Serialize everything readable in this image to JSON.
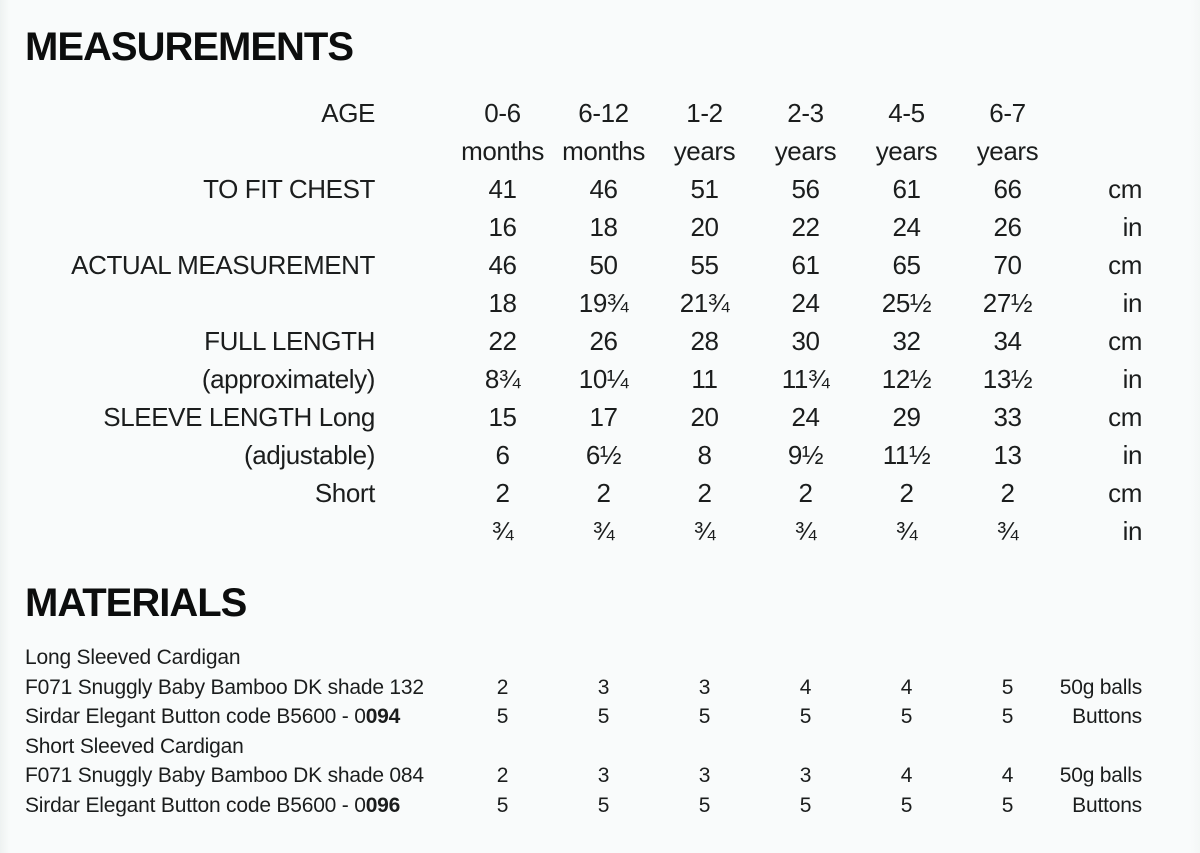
{
  "page": {
    "background": "#f9fbfb",
    "text_color": "#1b1d1d"
  },
  "measurements": {
    "title": "MEASUREMENTS",
    "age_label": "AGE",
    "columns": [
      {
        "range": "0-6",
        "period": "months"
      },
      {
        "range": "6-12",
        "period": "months"
      },
      {
        "range": "1-2",
        "period": "years"
      },
      {
        "range": "2-3",
        "period": "years"
      },
      {
        "range": "4-5",
        "period": "years"
      },
      {
        "range": "6-7",
        "period": "years"
      }
    ],
    "rows": [
      {
        "label": "TO FIT CHEST",
        "values": [
          "41",
          "46",
          "51",
          "56",
          "61",
          "66"
        ],
        "unit": "cm"
      },
      {
        "label": "",
        "values": [
          "16",
          "18",
          "20",
          "22",
          "24",
          "26"
        ],
        "unit": "in"
      },
      {
        "label": "ACTUAL MEASUREMENT",
        "values": [
          "46",
          "50",
          "55",
          "61",
          "65",
          "70"
        ],
        "unit": "cm"
      },
      {
        "label": "",
        "values": [
          "18",
          "19¾",
          "21¾",
          "24",
          "25½",
          "27½"
        ],
        "unit": "in"
      },
      {
        "label": "FULL LENGTH",
        "values": [
          "22",
          "26",
          "28",
          "30",
          "32",
          "34"
        ],
        "unit": "cm"
      },
      {
        "label": "(approximately)",
        "values": [
          "8¾",
          "10¼",
          "11",
          "11¾",
          "12½",
          "13½"
        ],
        "unit": "in"
      },
      {
        "label": "SLEEVE LENGTH Long",
        "values": [
          "15",
          "17",
          "20",
          "24",
          "29",
          "33"
        ],
        "unit": "cm"
      },
      {
        "label": "(adjustable)",
        "values": [
          "6",
          "6½",
          "8",
          "9½",
          "11½",
          "13"
        ],
        "unit": "in"
      },
      {
        "label": "Short",
        "values": [
          "2",
          "2",
          "2",
          "2",
          "2",
          "2"
        ],
        "unit": "cm"
      },
      {
        "label": "",
        "values": [
          "¾",
          "¾",
          "¾",
          "¾",
          "¾",
          "¾"
        ],
        "unit": "in"
      }
    ]
  },
  "materials": {
    "title": "MATERIALS",
    "rows": [
      {
        "label": "Long Sleeved Cardigan",
        "label_bold": "",
        "values": [
          "",
          "",
          "",
          "",
          "",
          ""
        ],
        "unit": ""
      },
      {
        "label": "F071 Snuggly Baby Bamboo DK shade 132",
        "label_bold": "",
        "values": [
          "2",
          "3",
          "3",
          "4",
          "4",
          "5"
        ],
        "unit": "50g balls"
      },
      {
        "label": "Sirdar Elegant Button code B5600 - 0",
        "label_bold": "094",
        "values": [
          "5",
          "5",
          "5",
          "5",
          "5",
          "5"
        ],
        "unit": "Buttons"
      },
      {
        "label": "Short Sleeved Cardigan",
        "label_bold": "",
        "values": [
          "",
          "",
          "",
          "",
          "",
          ""
        ],
        "unit": ""
      },
      {
        "label": "F071 Snuggly Baby Bamboo DK shade 084",
        "label_bold": "",
        "values": [
          "2",
          "3",
          "3",
          "3",
          "4",
          "4"
        ],
        "unit": "50g balls"
      },
      {
        "label": "Sirdar Elegant Button code B5600 - 0",
        "label_bold": "096",
        "values": [
          "5",
          "5",
          "5",
          "5",
          "5",
          "5"
        ],
        "unit": "Buttons"
      }
    ]
  }
}
